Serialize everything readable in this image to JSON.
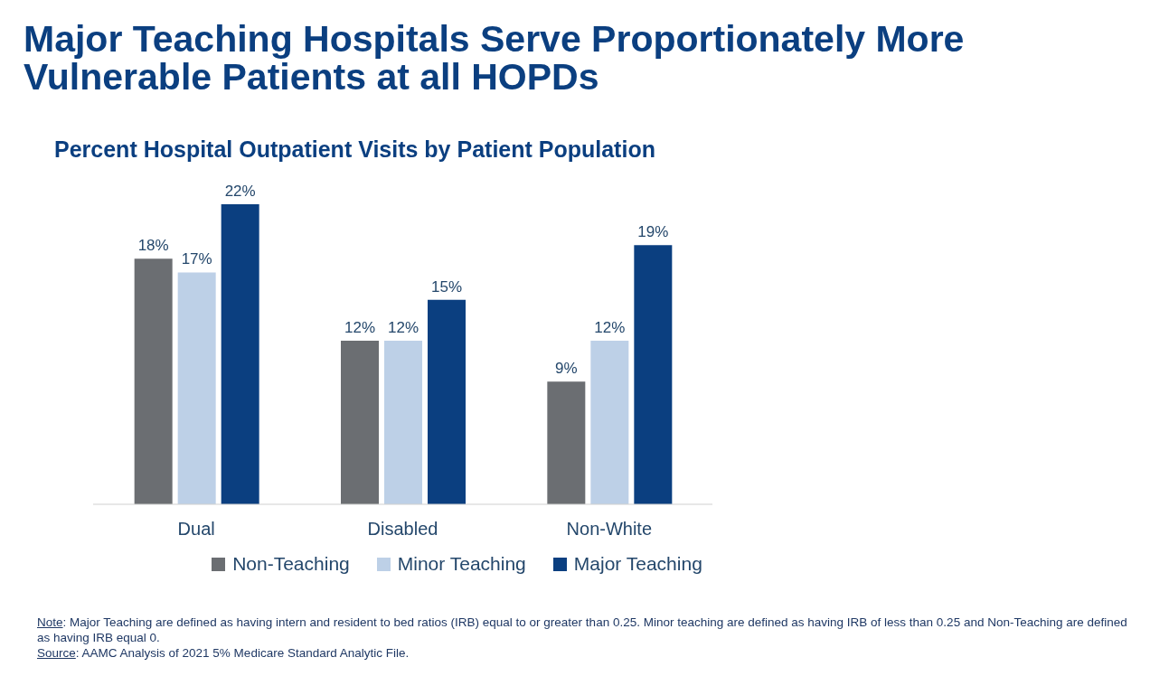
{
  "chart_data": {
    "type": "bar",
    "title": "Major Teaching Hospitals Serve Proportionately More Vulnerable Patients at all HOPDs",
    "subtitle": "Percent Hospital Outpatient Visits by Patient Population",
    "categories": [
      "Dual",
      "Disabled",
      "Non-White"
    ],
    "series": [
      {
        "name": "Non-Teaching",
        "color": "#6b6e72",
        "values": [
          18,
          12,
          9
        ],
        "value_labels": [
          "18%",
          "12%",
          "9%"
        ]
      },
      {
        "name": "Minor Teaching",
        "color": "#bdd0e7",
        "values": [
          17,
          12,
          12
        ],
        "value_labels": [
          "17%",
          "12%",
          "12%"
        ]
      },
      {
        "name": "Major Teaching",
        "color": "#0b3f80",
        "values": [
          22,
          15,
          19
        ],
        "value_labels": [
          "22%",
          "15%",
          "19%"
        ]
      }
    ],
    "legend": "bottom",
    "grid": false,
    "annotations": [
      "Note: Major Teaching are defined as having intern and resident to bed ratios (IRB) equal to or greater than 0.25. Minor teaching are defined as having IRB of less than 0.25 and Non-Teaching are defined as having IRB equal 0.",
      "Source: AAMC Analysis of 2021 5% Medicare Standard Analytic File."
    ]
  }
}
